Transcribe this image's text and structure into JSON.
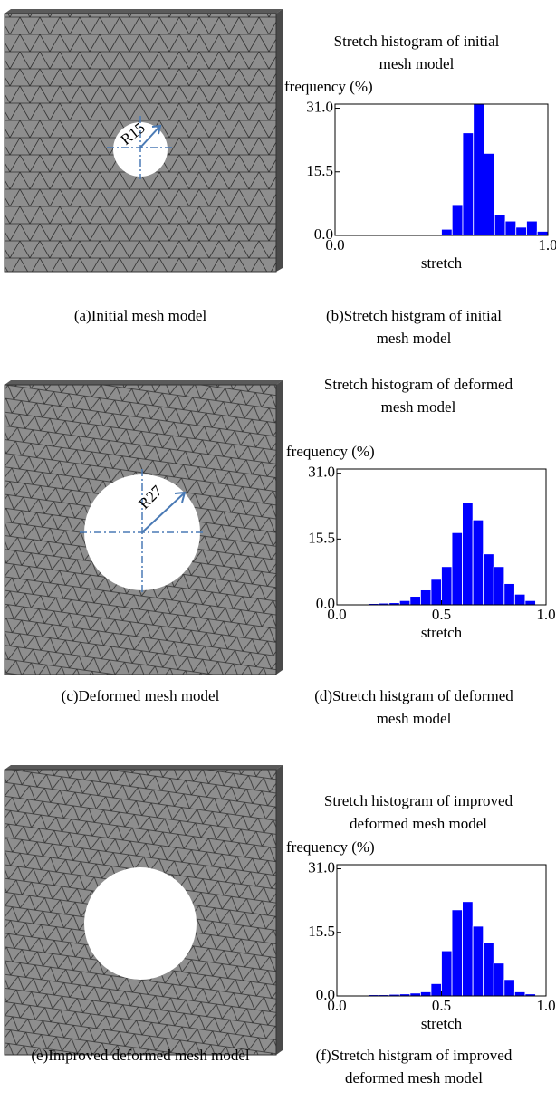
{
  "chart_data": [
    {
      "type": "histogram",
      "title": "Stretch histogram of initial\nmesh model",
      "xlabel": "stretch",
      "ylabel": "frequency (%)",
      "color": "#0000ff",
      "bins": [
        0,
        0.05,
        0.1,
        0.15,
        0.2,
        0.25,
        0.3,
        0.35,
        0.4,
        0.45,
        0.5,
        0.55,
        0.6,
        0.65,
        0.7,
        0.75,
        0.8,
        0.85,
        0.9,
        0.95,
        1.0
      ],
      "values": [
        0,
        0,
        0,
        0,
        0,
        0,
        0,
        0,
        0,
        0,
        1.5,
        7.5,
        25,
        32,
        20,
        5,
        3.5,
        2,
        3.5,
        1
      ],
      "xlim": [
        0,
        1
      ],
      "ylim": [
        0,
        32
      ],
      "xticks": [
        {
          "value": 0,
          "label": "0.0"
        },
        {
          "value": 1,
          "label": "1.0"
        }
      ],
      "yticks": [
        {
          "value": 0,
          "label": "0.0"
        },
        {
          "value": 15.5,
          "label": "15.5"
        },
        {
          "value": 31,
          "label": "31.0"
        }
      ]
    },
    {
      "type": "histogram",
      "title": "Stretch histogram of deformed\nmesh model",
      "xlabel": "stretch",
      "ylabel": "frequency (%)",
      "color": "#0000ff",
      "bins": [
        0,
        0.05,
        0.1,
        0.15,
        0.2,
        0.25,
        0.3,
        0.35,
        0.4,
        0.45,
        0.5,
        0.55,
        0.6,
        0.65,
        0.7,
        0.75,
        0.8,
        0.85,
        0.9,
        0.95,
        1.0
      ],
      "values": [
        0,
        0,
        0,
        0.3,
        0.4,
        0.5,
        1,
        2,
        3.5,
        6,
        9,
        17,
        24,
        20,
        12,
        9,
        5,
        2.5,
        1,
        0
      ],
      "xlim": [
        0,
        1
      ],
      "ylim": [
        0,
        32
      ],
      "xticks": [
        {
          "value": 0,
          "label": "0.0"
        },
        0.5,
        {
          "value": 1,
          "label": "1.0"
        }
      ],
      "yticks": [
        {
          "value": 0,
          "label": "0.0"
        },
        {
          "value": 15.5,
          "label": "15.5"
        },
        {
          "value": 31,
          "label": "31.0"
        }
      ]
    },
    {
      "type": "histogram",
      "title": "Stretch histogram of improved\ndeformed mesh model",
      "xlabel": "stretch",
      "ylabel": "frequency (%)",
      "color": "#0000ff",
      "bins": [
        0,
        0.05,
        0.1,
        0.15,
        0.2,
        0.25,
        0.3,
        0.35,
        0.4,
        0.45,
        0.5,
        0.55,
        0.6,
        0.65,
        0.7,
        0.75,
        0.8,
        0.85,
        0.9,
        0.95,
        1.0
      ],
      "values": [
        0,
        0,
        0,
        0.3,
        0.3,
        0.4,
        0.5,
        0.7,
        1,
        3,
        11,
        21,
        23,
        17,
        13,
        8,
        4,
        1,
        0.5,
        0
      ],
      "xlim": [
        0,
        1
      ],
      "ylim": [
        0,
        32
      ],
      "xticks": [
        {
          "value": 0,
          "label": "0.0"
        },
        0.5,
        {
          "value": 1,
          "label": "1.0"
        }
      ],
      "yticks": [
        {
          "value": 0,
          "label": "0.0"
        },
        {
          "value": 15.5,
          "label": "15.5"
        },
        {
          "value": 31,
          "label": "31.0"
        }
      ]
    }
  ],
  "mesh_labels": [
    "R15",
    "R27"
  ],
  "captions": [
    "(a)Initial mesh model",
    "(b)Stretch histgram of initial\nmesh model",
    "(c)Deformed mesh model",
    "(d)Stretch histgram of deformed\nmesh model",
    "(e)Improved deformed mesh model",
    "(f)Stretch histgram of improved\ndeformed mesh model"
  ]
}
